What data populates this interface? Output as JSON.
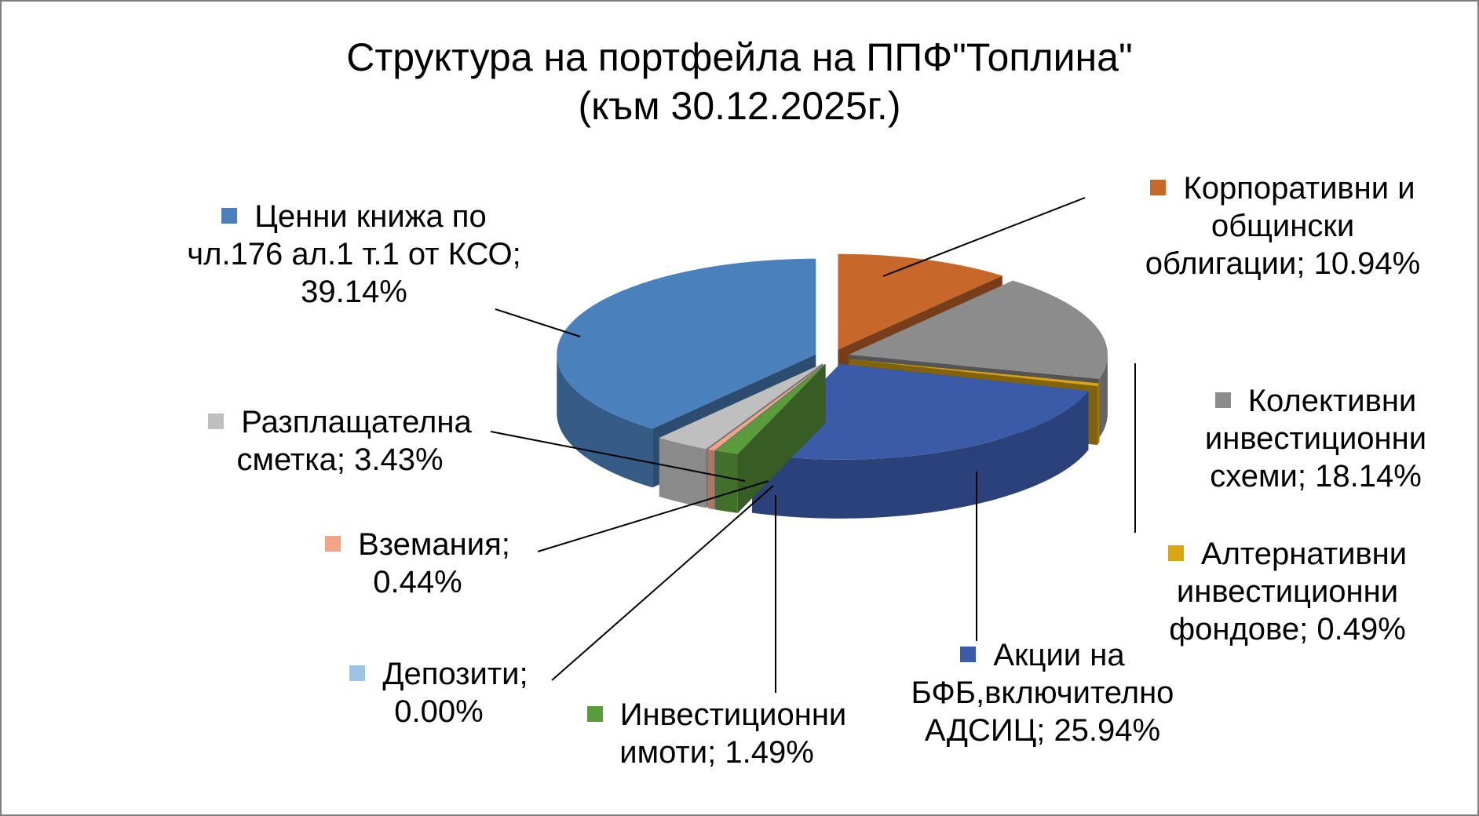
{
  "chart_data": {
    "type": "pie",
    "title": "Структура на портфейла на ППФ\"Топлина\"",
    "subtitle": "(към 30.12.2025г.)",
    "categories": [
      "Корпоративни и общински облигации;",
      "Колективни инвестиционни схеми;",
      "Алтернативни инвестиционни фондове;",
      "Акции на БФБ,включително АДСИЦ;",
      "Инвестиционни имоти;",
      "Депозити;",
      "Вземания;",
      "Разплащателна сметка;",
      "Ценни книжа по чл.176 ал.1 т.1 от КСО;"
    ],
    "values": [
      10.94,
      18.14,
      0.49,
      25.94,
      1.49,
      0.0,
      0.44,
      3.43,
      39.14
    ],
    "value_labels": [
      "10.94%",
      "18.14%",
      "0.49%",
      "25.94%",
      "1.49%",
      "0.00%",
      "0.44%",
      "3.43%",
      "39.14%"
    ],
    "colors": [
      "#c8672a",
      "#8c8c8c",
      "#d9a514",
      "#3a5ca8",
      "#5b9b3c",
      "#9dc3e6",
      "#f2a487",
      "#bfbfbf",
      "#4a80bb"
    ]
  }
}
